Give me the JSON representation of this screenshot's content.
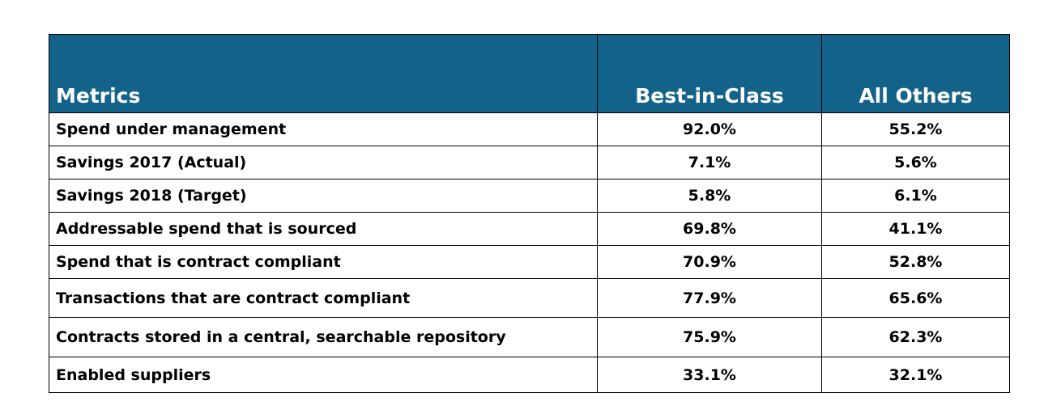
{
  "header": {
    "metrics": "Metrics",
    "best_in_class": "Best-in-Class",
    "all_others": "All Others"
  },
  "rows": [
    {
      "metric": "Spend under management",
      "best": "92.0%",
      "others": "55.2%"
    },
    {
      "metric": "Savings 2017 (Actual)",
      "best": "7.1%",
      "others": "5.6%"
    },
    {
      "metric": "Savings 2018 (Target)",
      "best": "5.8%",
      "others": "6.1%"
    },
    {
      "metric": "Addressable spend that is sourced",
      "best": "69.8%",
      "others": "41.1%"
    },
    {
      "metric": "Spend that is contract compliant",
      "best": "70.9%",
      "others": "52.8%"
    },
    {
      "metric": "Transactions that are contract compliant",
      "best": "77.9%",
      "others": "65.6%"
    },
    {
      "metric": "Contracts stored in a central, searchable repository",
      "best": "75.9%",
      "others": "62.3%"
    },
    {
      "metric": "Enabled suppliers",
      "best": "33.1%",
      "others": "32.1%"
    }
  ],
  "colors": {
    "header_bg": "#136289",
    "header_text": "#ffffff",
    "border": "#000000"
  }
}
